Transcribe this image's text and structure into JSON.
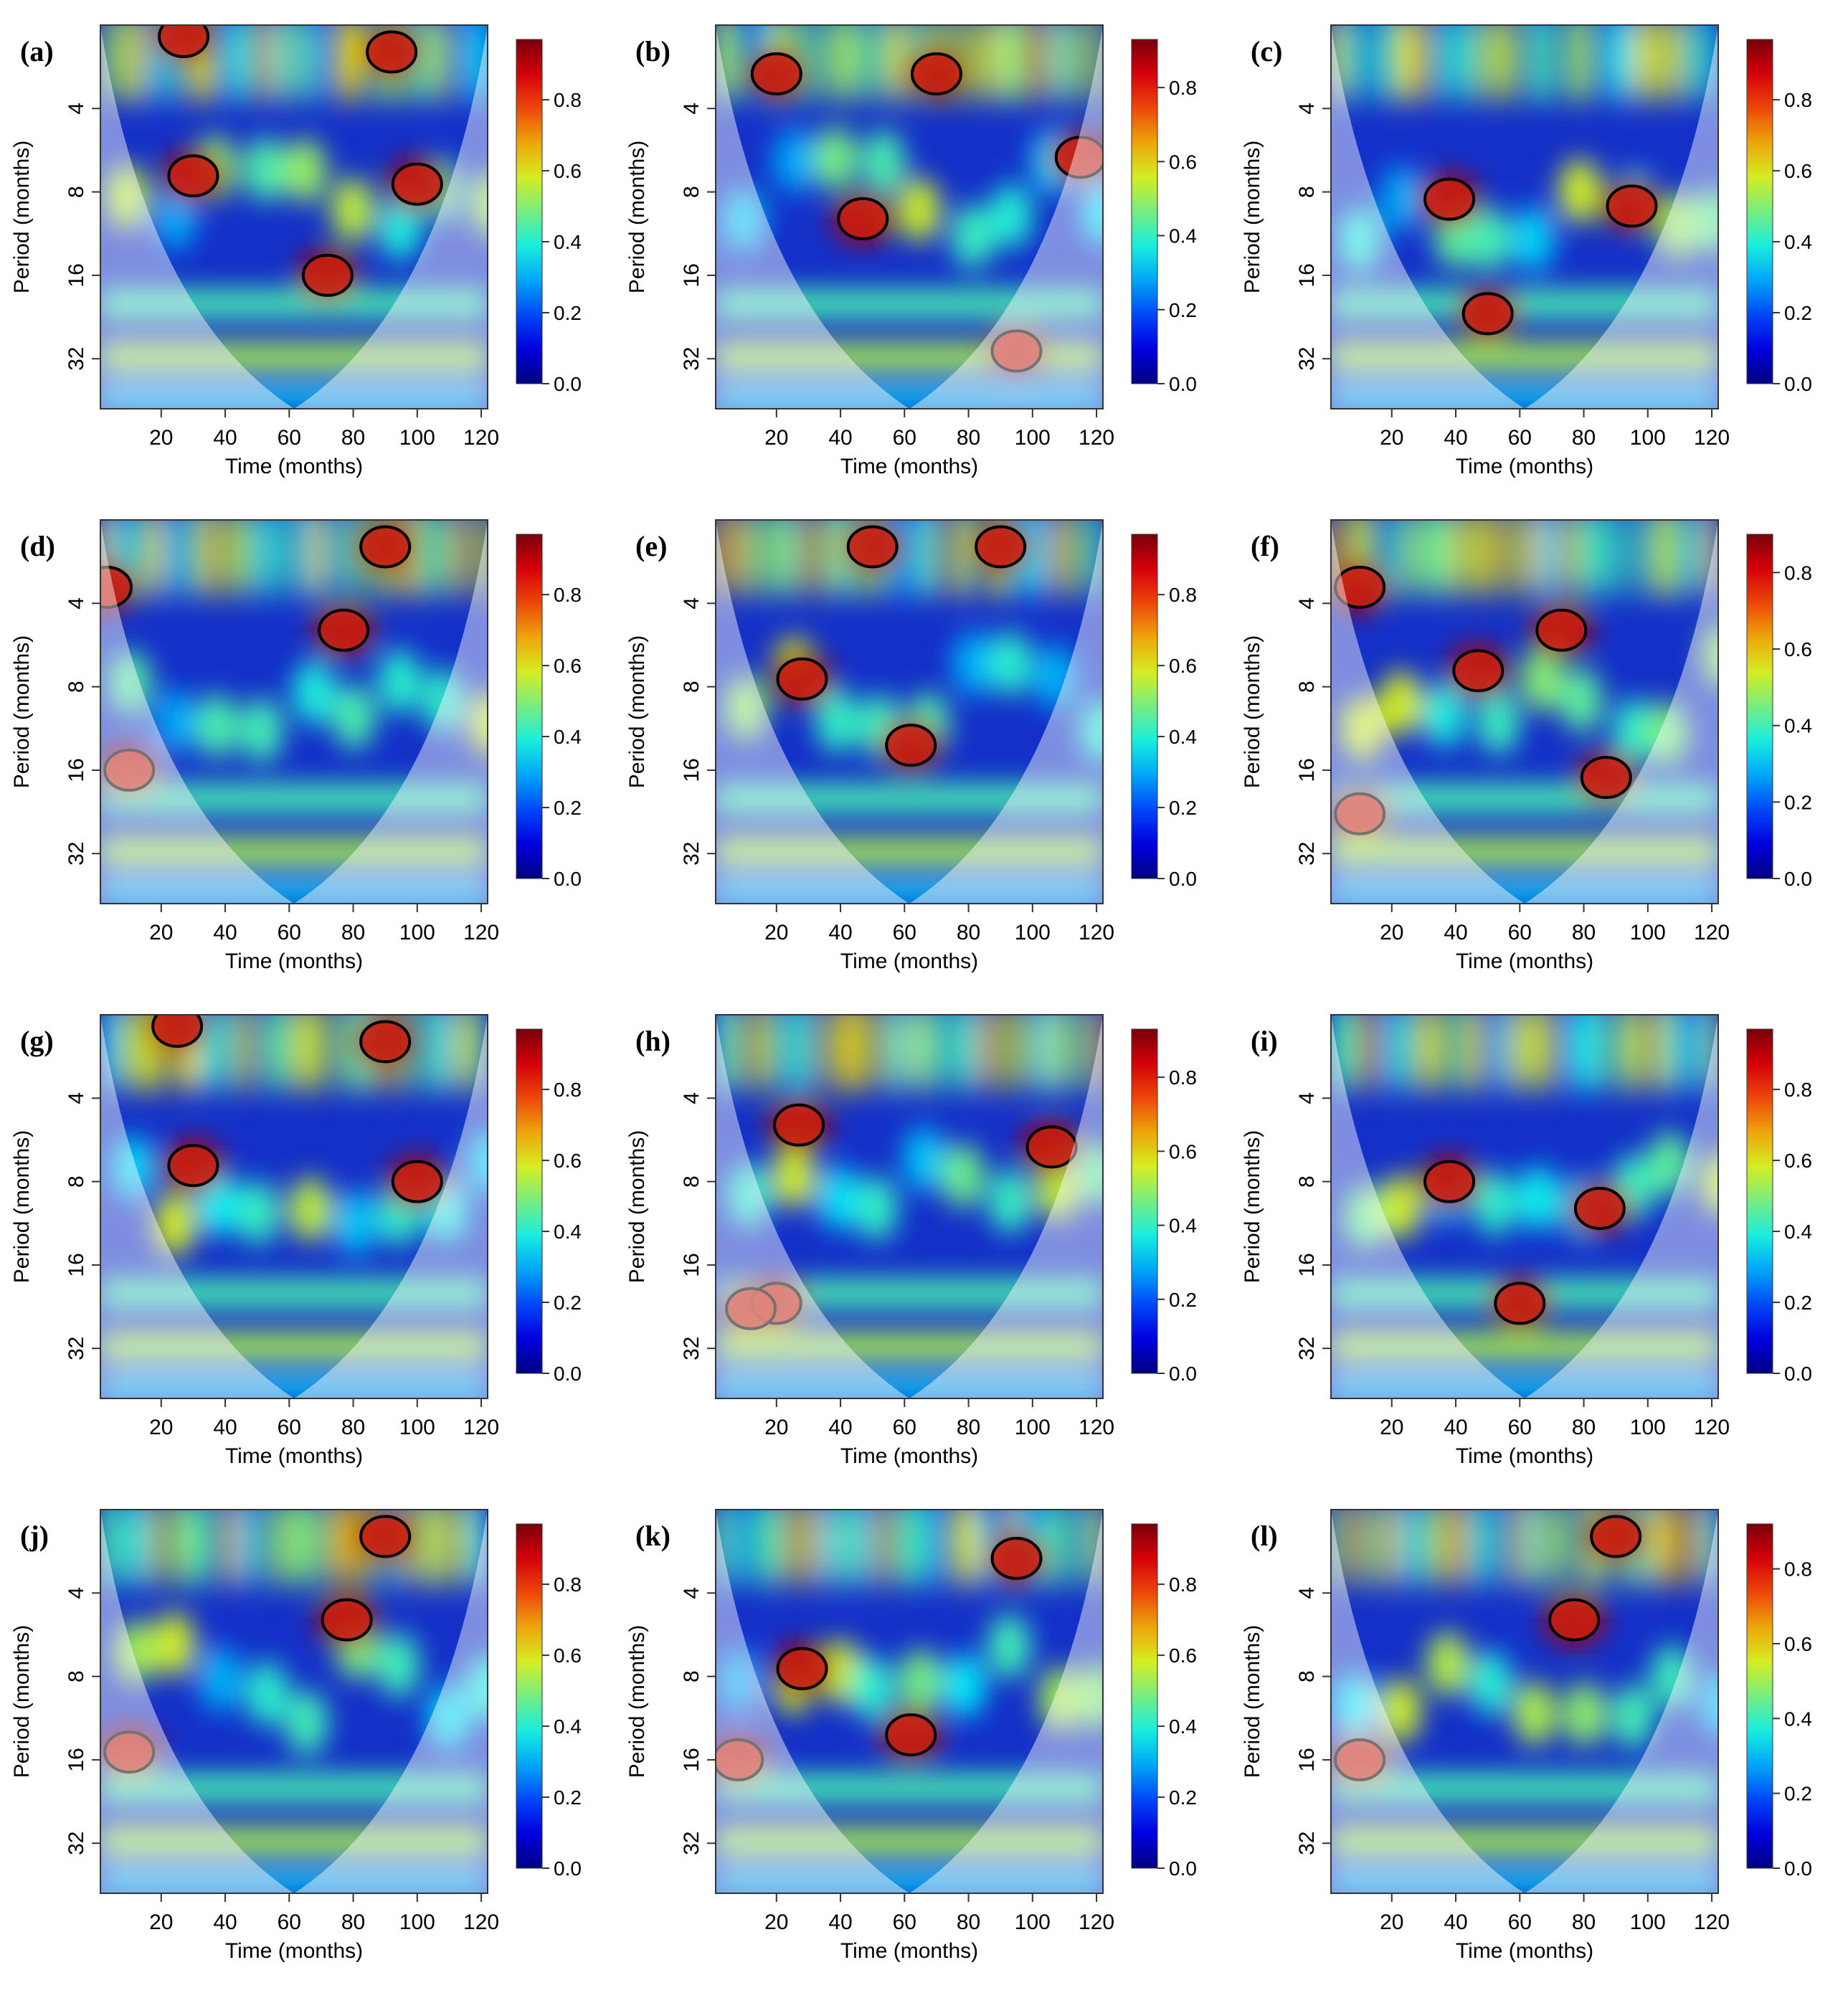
{
  "figure": {
    "xlabel": "Time (months)",
    "ylabel": "Period (months)"
  },
  "chart_data": [
    {
      "panel": "(a)",
      "type": "heatmap",
      "xlabel": "Time (months)",
      "ylabel": "Period (months)",
      "xticks": [
        20,
        40,
        60,
        80,
        100,
        120
      ],
      "yticks": [
        4,
        8,
        16,
        32
      ],
      "y_scale": "log2",
      "colorbar_ticks": [
        "0.0",
        "0.2",
        "0.4",
        "0.6",
        "0.8"
      ],
      "colorbar_range": [
        0,
        0.97
      ],
      "significant_regions": [
        [
          30,
          7
        ],
        [
          100,
          7.5
        ],
        [
          72,
          16
        ],
        [
          92,
          2.5
        ],
        [
          27,
          2.2
        ]
      ]
    },
    {
      "panel": "(b)",
      "type": "heatmap",
      "xlabel": "Time (months)",
      "ylabel": "Period (months)",
      "xticks": [
        20,
        40,
        60,
        80,
        100,
        120
      ],
      "yticks": [
        4,
        8,
        16,
        32
      ],
      "y_scale": "log2",
      "colorbar_ticks": [
        "0.0",
        "0.2",
        "0.4",
        "0.6",
        "0.8"
      ],
      "colorbar_range": [
        0,
        0.93
      ],
      "significant_regions": [
        [
          47,
          10
        ],
        [
          95,
          30
        ],
        [
          20,
          3
        ],
        [
          70,
          3
        ],
        [
          115,
          6
        ]
      ]
    },
    {
      "panel": "(c)",
      "type": "heatmap",
      "xlabel": "Time (months)",
      "ylabel": "Period (months)",
      "xticks": [
        20,
        40,
        60,
        80,
        100,
        120
      ],
      "yticks": [
        4,
        8,
        16,
        32
      ],
      "y_scale": "log2",
      "colorbar_ticks": [
        "0.0",
        "0.2",
        "0.4",
        "0.6",
        "0.8"
      ],
      "colorbar_range": [
        0,
        0.97
      ],
      "significant_regions": [
        [
          38,
          8.5
        ],
        [
          95,
          9
        ],
        [
          50,
          22
        ]
      ]
    },
    {
      "panel": "(d)",
      "type": "heatmap",
      "xlabel": "Time (months)",
      "ylabel": "Period (months)",
      "xticks": [
        20,
        40,
        60,
        80,
        100,
        120
      ],
      "yticks": [
        4,
        8,
        16,
        32
      ],
      "y_scale": "log2",
      "colorbar_ticks": [
        "0.0",
        "0.2",
        "0.4",
        "0.6",
        "0.8"
      ],
      "colorbar_range": [
        0,
        0.97
      ],
      "significant_regions": [
        [
          77,
          5
        ],
        [
          90,
          2.5
        ],
        [
          10,
          16
        ],
        [
          3,
          3.5
        ]
      ]
    },
    {
      "panel": "(e)",
      "type": "heatmap",
      "xlabel": "Time (months)",
      "ylabel": "Period (months)",
      "xticks": [
        20,
        40,
        60,
        80,
        100,
        120
      ],
      "yticks": [
        4,
        8,
        16,
        32
      ],
      "y_scale": "log2",
      "colorbar_ticks": [
        "0.0",
        "0.2",
        "0.4",
        "0.6",
        "0.8"
      ],
      "colorbar_range": [
        0,
        0.97
      ],
      "significant_regions": [
        [
          28,
          7.5
        ],
        [
          62,
          13
        ],
        [
          50,
          2.5
        ],
        [
          90,
          2.5
        ]
      ]
    },
    {
      "panel": "(f)",
      "type": "heatmap",
      "xlabel": "Time (months)",
      "ylabel": "Period (months)",
      "xticks": [
        20,
        40,
        60,
        80,
        100,
        120
      ],
      "yticks": [
        4,
        8,
        16,
        32
      ],
      "y_scale": "log2",
      "colorbar_ticks": [
        "0.0",
        "0.2",
        "0.4",
        "0.6",
        "0.8"
      ],
      "colorbar_range": [
        0,
        0.9
      ],
      "significant_regions": [
        [
          47,
          7
        ],
        [
          87,
          17
        ],
        [
          10,
          23
        ],
        [
          10,
          3.5
        ],
        [
          73,
          5
        ]
      ]
    },
    {
      "panel": "(g)",
      "type": "heatmap",
      "xlabel": "Time (months)",
      "ylabel": "Period (months)",
      "xticks": [
        20,
        40,
        60,
        80,
        100,
        120
      ],
      "yticks": [
        4,
        8,
        16,
        32
      ],
      "y_scale": "log2",
      "colorbar_ticks": [
        "0.0",
        "0.2",
        "0.4",
        "0.6",
        "0.8"
      ],
      "colorbar_range": [
        0,
        0.97
      ],
      "significant_regions": [
        [
          30,
          7
        ],
        [
          100,
          8
        ],
        [
          90,
          2.5
        ],
        [
          25,
          2.2
        ]
      ]
    },
    {
      "panel": "(h)",
      "type": "heatmap",
      "xlabel": "Time (months)",
      "ylabel": "Period (months)",
      "xticks": [
        20,
        40,
        60,
        80,
        100,
        120
      ],
      "yticks": [
        4,
        8,
        16,
        32
      ],
      "y_scale": "log2",
      "colorbar_ticks": [
        "0.0",
        "0.2",
        "0.4",
        "0.6",
        "0.8"
      ],
      "colorbar_range": [
        0,
        0.93
      ],
      "significant_regions": [
        [
          27,
          5
        ],
        [
          106,
          6
        ],
        [
          20,
          22
        ],
        [
          12,
          23
        ]
      ]
    },
    {
      "panel": "(i)",
      "type": "heatmap",
      "xlabel": "Time (months)",
      "ylabel": "Period (months)",
      "xticks": [
        20,
        40,
        60,
        80,
        100,
        120
      ],
      "yticks": [
        4,
        8,
        16,
        32
      ],
      "y_scale": "log2",
      "colorbar_ticks": [
        "0.0",
        "0.2",
        "0.4",
        "0.6",
        "0.8"
      ],
      "colorbar_range": [
        0,
        0.97
      ],
      "significant_regions": [
        [
          38,
          8
        ],
        [
          85,
          10
        ],
        [
          60,
          22
        ]
      ]
    },
    {
      "panel": "(j)",
      "type": "heatmap",
      "xlabel": "Time (months)",
      "ylabel": "Period (months)",
      "xticks": [
        20,
        40,
        60,
        80,
        100,
        120
      ],
      "yticks": [
        4,
        8,
        16,
        32
      ],
      "y_scale": "log2",
      "colorbar_ticks": [
        "0.0",
        "0.2",
        "0.4",
        "0.6",
        "0.8"
      ],
      "colorbar_range": [
        0,
        0.97
      ],
      "significant_regions": [
        [
          78,
          5
        ],
        [
          90,
          2.5
        ],
        [
          10,
          15
        ]
      ]
    },
    {
      "panel": "(k)",
      "type": "heatmap",
      "xlabel": "Time (months)",
      "ylabel": "Period (months)",
      "xticks": [
        20,
        40,
        60,
        80,
        100,
        120
      ],
      "yticks": [
        4,
        8,
        16,
        32
      ],
      "y_scale": "log2",
      "colorbar_ticks": [
        "0.0",
        "0.2",
        "0.4",
        "0.6",
        "0.8"
      ],
      "colorbar_range": [
        0,
        0.97
      ],
      "significant_regions": [
        [
          28,
          7.5
        ],
        [
          62,
          13
        ],
        [
          95,
          3
        ],
        [
          8,
          16
        ]
      ]
    },
    {
      "panel": "(l)",
      "type": "heatmap",
      "xlabel": "Time (months)",
      "ylabel": "Period (months)",
      "xticks": [
        20,
        40,
        60,
        80,
        100,
        120
      ],
      "yticks": [
        4,
        8,
        16,
        32
      ],
      "y_scale": "log2",
      "colorbar_ticks": [
        "0.0",
        "0.2",
        "0.4",
        "0.6",
        "0.8"
      ],
      "colorbar_range": [
        0,
        0.92
      ],
      "significant_regions": [
        [
          77,
          5
        ],
        [
          90,
          2.5
        ],
        [
          10,
          16
        ]
      ]
    }
  ]
}
